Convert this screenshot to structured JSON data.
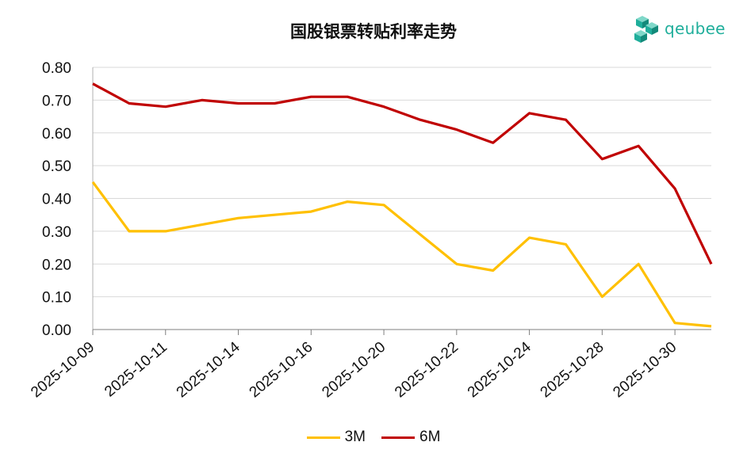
{
  "chart_data": {
    "type": "line",
    "title": "国股银票转贴利率走势",
    "xlabel": "",
    "ylabel": "",
    "ylim": [
      0,
      0.8
    ],
    "y_ticks": [
      "0.00",
      "0.10",
      "0.20",
      "0.30",
      "0.40",
      "0.50",
      "0.60",
      "0.70",
      "0.80"
    ],
    "x_ticks": [
      "2025-10-09",
      "2025-10-11",
      "2025-10-14",
      "2025-10-16",
      "2025-10-20",
      "2025-10-22",
      "2025-10-24",
      "2025-10-28",
      "2025-10-30"
    ],
    "x_tick_interval": 2,
    "x_point_count": 18,
    "grid": true,
    "legend_position": "bottom",
    "series": [
      {
        "name": "3M",
        "color": "#FFC000",
        "values": [
          0.45,
          0.3,
          0.3,
          0.32,
          0.34,
          0.35,
          0.36,
          0.39,
          0.38,
          0.29,
          0.2,
          0.18,
          0.28,
          0.26,
          0.1,
          0.2,
          0.02,
          0.01
        ]
      },
      {
        "name": "6M",
        "color": "#C00000",
        "values": [
          0.75,
          0.69,
          0.68,
          0.7,
          0.69,
          0.69,
          0.71,
          0.71,
          0.68,
          0.64,
          0.61,
          0.57,
          0.66,
          0.64,
          0.52,
          0.56,
          0.43,
          0.2
        ]
      }
    ]
  },
  "logo": {
    "text": "qeubee",
    "icon": "cube-cluster-icon",
    "color": "#1FAE9B"
  }
}
